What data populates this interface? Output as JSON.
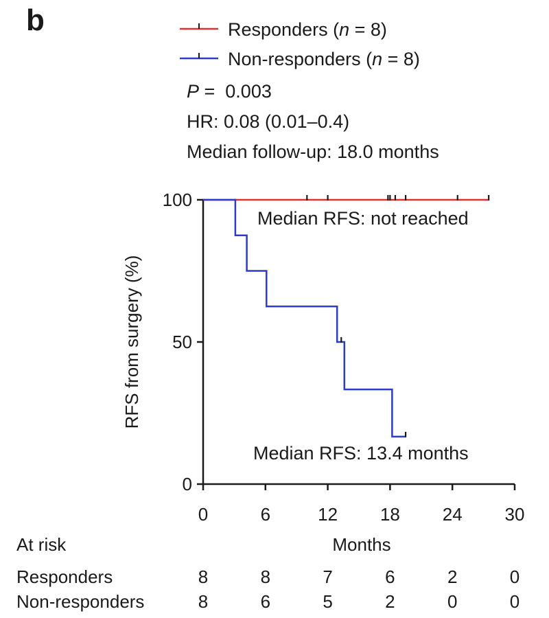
{
  "panel_label": "b",
  "legend": [
    {
      "key": "responders",
      "prefix": "Responders (",
      "n_symbol": "n",
      "suffix": " = 8)",
      "color": "#e03030"
    },
    {
      "key": "non_responders",
      "prefix": "Non-responders (",
      "n_symbol": "n",
      "suffix": " = 8)",
      "color": "#2b3cc8"
    }
  ],
  "stats": {
    "p_symbol": "P",
    "p_rest": " =  0.003",
    "hr": "HR: 0.08 (0.01–0.4)",
    "followup": "Median follow-up: 18.0 months"
  },
  "annotations": {
    "responders_median": "Median RFS: not reached",
    "non_responders_median": "Median RFS: 13.4 months"
  },
  "chart_data": {
    "type": "line",
    "subtype": "kaplan-meier",
    "xlabel": "Months",
    "ylabel": "RFS from surgery (%)",
    "xlim": [
      0,
      30
    ],
    "ylim": [
      0,
      100
    ],
    "xticks": [
      "0",
      "6",
      "12",
      "18",
      "24",
      "30"
    ],
    "yticks": [
      "0",
      "50",
      "100"
    ],
    "grid": false,
    "legend_position": "top",
    "series": [
      {
        "name": "Responders (n = 8)",
        "color": "#e03030",
        "steps": [
          [
            0,
            100
          ],
          [
            27.5,
            100
          ]
        ],
        "censored": [
          [
            10,
            100
          ],
          [
            12,
            100
          ],
          [
            17.8,
            100
          ],
          [
            18,
            100
          ],
          [
            18.5,
            100
          ],
          [
            19.5,
            100
          ],
          [
            24.5,
            100
          ],
          [
            27.5,
            100
          ]
        ]
      },
      {
        "name": "Non-responders (n = 8)",
        "color": "#2b3cc8",
        "steps": [
          [
            0,
            100
          ],
          [
            3.1,
            100
          ],
          [
            3.1,
            87.5
          ],
          [
            4.2,
            87.5
          ],
          [
            4.2,
            75
          ],
          [
            6.1,
            75
          ],
          [
            6.1,
            62.5
          ],
          [
            12.9,
            62.5
          ],
          [
            12.9,
            50
          ],
          [
            13.6,
            50
          ],
          [
            13.6,
            33.3
          ],
          [
            18.2,
            33.3
          ],
          [
            18.2,
            16.7
          ],
          [
            19.5,
            16.7
          ]
        ],
        "censored": [
          [
            13.3,
            50
          ],
          [
            19.5,
            16.7
          ]
        ]
      }
    ],
    "at_risk": {
      "title": "At risk",
      "times": [
        0,
        6,
        12,
        18,
        24,
        30
      ],
      "rows": [
        {
          "label": "Responders",
          "values": [
            "8",
            "8",
            "7",
            "6",
            "2",
            "0"
          ]
        },
        {
          "label": "Non-responders",
          "values": [
            "8",
            "6",
            "5",
            "2",
            "0",
            "0"
          ]
        }
      ]
    }
  }
}
